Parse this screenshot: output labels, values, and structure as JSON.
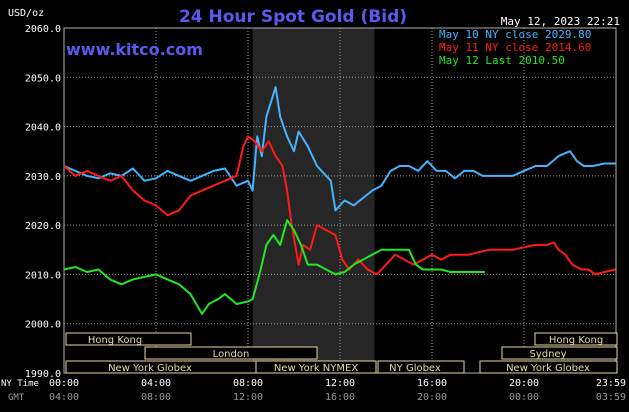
{
  "header": {
    "title": "24 Hour Spot Gold (Bid)",
    "unit": "USD/oz",
    "datetime": "May 12, 2023 22:21",
    "watermark": "www.kitco.com"
  },
  "axis_labels": {
    "ny_time": "NY Time",
    "gmt": "GMT"
  },
  "markets": {
    "row1": [
      "Hong Kong",
      "Hong Kong"
    ],
    "row2": [
      "London",
      "Sydney"
    ],
    "row3": [
      "New York Globex",
      "New York NYMEX",
      "NY Globex",
      "New York Globex"
    ]
  },
  "colors": {
    "background": "#000000",
    "plot_bg": "#000000",
    "nymex_shade": "#262626",
    "grid": "#9a9a9a",
    "text": "#ffffff",
    "title": "#5a5af0",
    "watermark": "#5a5af0",
    "session_box": "#e8d9a4",
    "s1": "#44b4ff",
    "s2": "#ff1a1a",
    "s3": "#22e822"
  },
  "chart_data": {
    "type": "line",
    "title": "24 Hour Spot Gold (Bid)",
    "ylabel": "USD/oz",
    "ylim": [
      1990,
      2060
    ],
    "yticks": [
      "2060.0",
      "2050.0",
      "2040.0",
      "2030.0",
      "2020.0",
      "2010.0",
      "2000.0",
      "1990.0"
    ],
    "xlim": [
      0,
      24
    ],
    "xticks_ny": [
      "00:00",
      "04:00",
      "08:00",
      "12:00",
      "16:00",
      "20:00",
      "23:59"
    ],
    "xticks_gmt": [
      "04:00",
      "08:00",
      "12:00",
      "16:00",
      "20:00",
      "00:00",
      "03:59"
    ],
    "grid": true,
    "legend_position": "top-right",
    "nymex_session": [
      8.2,
      13.5
    ],
    "series": [
      {
        "name": "May 10 NY close 2029.80",
        "color": "#44b4ff",
        "points": [
          [
            0,
            2032
          ],
          [
            0.5,
            2031
          ],
          [
            1,
            2030
          ],
          [
            1.5,
            2029.5
          ],
          [
            2,
            2030.5
          ],
          [
            2.5,
            2030
          ],
          [
            3,
            2031.5
          ],
          [
            3.5,
            2029
          ],
          [
            4,
            2029.5
          ],
          [
            4.5,
            2031
          ],
          [
            5,
            2030
          ],
          [
            5.5,
            2029
          ],
          [
            6,
            2030
          ],
          [
            6.5,
            2031
          ],
          [
            7,
            2031.5
          ],
          [
            7.5,
            2028
          ],
          [
            8,
            2029
          ],
          [
            8.2,
            2027
          ],
          [
            8.4,
            2038
          ],
          [
            8.6,
            2034
          ],
          [
            8.8,
            2042
          ],
          [
            9.2,
            2048
          ],
          [
            9.4,
            2042
          ],
          [
            9.7,
            2038
          ],
          [
            10,
            2035
          ],
          [
            10.2,
            2039
          ],
          [
            10.6,
            2036
          ],
          [
            11,
            2032
          ],
          [
            11.4,
            2030
          ],
          [
            11.6,
            2029
          ],
          [
            11.8,
            2023
          ],
          [
            12.2,
            2025
          ],
          [
            12.6,
            2024
          ],
          [
            13,
            2025.5
          ],
          [
            13.4,
            2027
          ],
          [
            13.8,
            2028
          ],
          [
            14.2,
            2031
          ],
          [
            14.6,
            2032
          ],
          [
            15,
            2032
          ],
          [
            15.4,
            2031
          ],
          [
            15.8,
            2033
          ],
          [
            16.2,
            2031
          ],
          [
            16.6,
            2031
          ],
          [
            17,
            2029.5
          ],
          [
            17.4,
            2031
          ],
          [
            17.8,
            2031
          ],
          [
            18.2,
            2030
          ],
          [
            18.6,
            2030
          ],
          [
            19,
            2030
          ],
          [
            19.5,
            2030
          ],
          [
            20,
            2031
          ],
          [
            20.5,
            2032
          ],
          [
            21,
            2032
          ],
          [
            21.5,
            2034
          ],
          [
            22,
            2035
          ],
          [
            22.3,
            2033
          ],
          [
            22.6,
            2032
          ],
          [
            23,
            2032
          ],
          [
            23.5,
            2032.5
          ],
          [
            23.98,
            2032.5
          ]
        ]
      },
      {
        "name": "May 11 NY close 2014.60",
        "color": "#ff1a1a",
        "points": [
          [
            0,
            2032
          ],
          [
            0.5,
            2030
          ],
          [
            1,
            2031
          ],
          [
            1.5,
            2030
          ],
          [
            2,
            2029
          ],
          [
            2.5,
            2030
          ],
          [
            3,
            2027
          ],
          [
            3.5,
            2025
          ],
          [
            4,
            2024
          ],
          [
            4.5,
            2022
          ],
          [
            5,
            2023
          ],
          [
            5.5,
            2026
          ],
          [
            6,
            2027
          ],
          [
            6.5,
            2028
          ],
          [
            7,
            2029
          ],
          [
            7.5,
            2030
          ],
          [
            7.8,
            2036
          ],
          [
            8,
            2038
          ],
          [
            8.3,
            2037
          ],
          [
            8.6,
            2035
          ],
          [
            8.9,
            2037
          ],
          [
            9.2,
            2034
          ],
          [
            9.5,
            2032
          ],
          [
            9.7,
            2027
          ],
          [
            9.9,
            2020
          ],
          [
            10.2,
            2012
          ],
          [
            10.4,
            2016
          ],
          [
            10.7,
            2015
          ],
          [
            11,
            2020
          ],
          [
            11.4,
            2019
          ],
          [
            11.8,
            2018
          ],
          [
            12.1,
            2013
          ],
          [
            12.4,
            2011
          ],
          [
            12.8,
            2013
          ],
          [
            13.2,
            2011
          ],
          [
            13.6,
            2010
          ],
          [
            14,
            2012
          ],
          [
            14.4,
            2014
          ],
          [
            14.8,
            2013
          ],
          [
            15.2,
            2012
          ],
          [
            15.6,
            2013
          ],
          [
            16,
            2014
          ],
          [
            16.4,
            2013
          ],
          [
            16.8,
            2014
          ],
          [
            17.2,
            2014
          ],
          [
            17.6,
            2014
          ],
          [
            18,
            2014.5
          ],
          [
            18.5,
            2015
          ],
          [
            19,
            2015
          ],
          [
            19.5,
            2015
          ],
          [
            20,
            2015.5
          ],
          [
            20.5,
            2016
          ],
          [
            21,
            2016
          ],
          [
            21.3,
            2016.5
          ],
          [
            21.5,
            2015
          ],
          [
            21.8,
            2014
          ],
          [
            22.1,
            2012
          ],
          [
            22.5,
            2011
          ],
          [
            22.8,
            2011
          ],
          [
            23.1,
            2010
          ],
          [
            23.5,
            2010.5
          ],
          [
            23.98,
            2011
          ]
        ]
      },
      {
        "name": "May 12 Last 2010.50",
        "color": "#22e822",
        "points": [
          [
            0,
            2011
          ],
          [
            0.5,
            2011.5
          ],
          [
            1,
            2010.5
          ],
          [
            1.5,
            2011
          ],
          [
            2,
            2009
          ],
          [
            2.5,
            2008
          ],
          [
            3,
            2009
          ],
          [
            3.5,
            2009.5
          ],
          [
            4,
            2010
          ],
          [
            4.5,
            2009
          ],
          [
            5,
            2008
          ],
          [
            5.5,
            2006
          ],
          [
            6,
            2002
          ],
          [
            6.3,
            2004
          ],
          [
            6.7,
            2005
          ],
          [
            7,
            2006
          ],
          [
            7.5,
            2004
          ],
          [
            8,
            2004.5
          ],
          [
            8.2,
            2005
          ],
          [
            8.5,
            2010
          ],
          [
            8.8,
            2016
          ],
          [
            9.1,
            2018
          ],
          [
            9.4,
            2016
          ],
          [
            9.7,
            2021
          ],
          [
            10,
            2019
          ],
          [
            10.3,
            2016
          ],
          [
            10.6,
            2012
          ],
          [
            11,
            2012
          ],
          [
            11.4,
            2011
          ],
          [
            11.8,
            2010
          ],
          [
            12.2,
            2010.5
          ],
          [
            12.6,
            2012
          ],
          [
            13,
            2013
          ],
          [
            13.4,
            2014
          ],
          [
            13.8,
            2015
          ],
          [
            14.2,
            2015
          ],
          [
            14.6,
            2015
          ],
          [
            15,
            2015
          ],
          [
            15.3,
            2012
          ],
          [
            15.6,
            2011
          ],
          [
            16,
            2011
          ],
          [
            16.4,
            2011
          ],
          [
            16.8,
            2010.5
          ],
          [
            17.2,
            2010.5
          ],
          [
            17.6,
            2010.5
          ],
          [
            18,
            2010.5
          ],
          [
            18.3,
            2010.5
          ]
        ]
      }
    ]
  }
}
